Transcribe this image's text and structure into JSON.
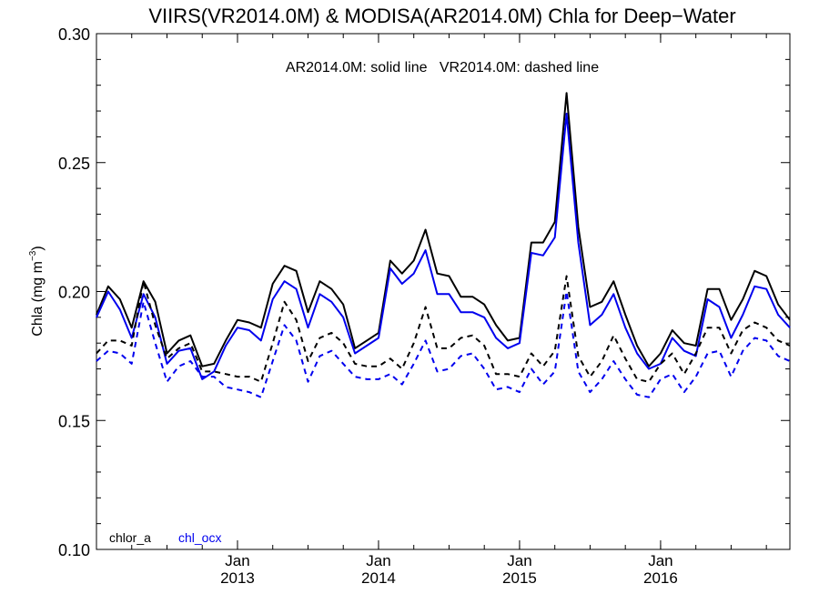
{
  "chart_data": {
    "type": "line",
    "title": "VIIRS(VR2014.0M) & MODISA(AR2014.0M)  Chla for Deep−Water",
    "subtitle": "AR2014.0M: solid line   VR2014.0M: dashed line",
    "xlabel": "",
    "ylabel": "Chla (mg m",
    "ylabel_sup": "−3",
    "ylabel_close": ")",
    "ylim": [
      0.1,
      0.3
    ],
    "yticks": [
      "0.10",
      "0.15",
      "0.20",
      "0.25",
      "0.30"
    ],
    "yticks_values": [
      0.1,
      0.15,
      0.2,
      0.25,
      0.3
    ],
    "xlim": [
      "2012-01",
      "2016-12"
    ],
    "xticks": [
      {
        "month": "2013-01",
        "line1": "Jan",
        "line2": "2013"
      },
      {
        "month": "2014-01",
        "line1": "Jan",
        "line2": "2014"
      },
      {
        "month": "2015-01",
        "line1": "Jan",
        "line2": "2015"
      },
      {
        "month": "2016-01",
        "line1": "Jan",
        "line2": "2016"
      }
    ],
    "grid": false,
    "legend_entries": [
      {
        "label": "chlor_a",
        "color": "#000000"
      },
      {
        "label": "chl_ocx",
        "color": "#0000ee"
      }
    ],
    "legend_position": "bottom-left",
    "x": [
      "2012-01",
      "2012-02",
      "2012-03",
      "2012-04",
      "2012-05",
      "2012-06",
      "2012-07",
      "2012-08",
      "2012-09",
      "2012-10",
      "2012-11",
      "2012-12",
      "2013-01",
      "2013-02",
      "2013-03",
      "2013-04",
      "2013-05",
      "2013-06",
      "2013-07",
      "2013-08",
      "2013-09",
      "2013-10",
      "2013-11",
      "2013-12",
      "2014-01",
      "2014-02",
      "2014-03",
      "2014-04",
      "2014-05",
      "2014-06",
      "2014-07",
      "2014-08",
      "2014-09",
      "2014-10",
      "2014-11",
      "2014-12",
      "2015-01",
      "2015-02",
      "2015-03",
      "2015-04",
      "2015-05",
      "2015-06",
      "2015-07",
      "2015-08",
      "2015-09",
      "2015-10",
      "2015-11",
      "2015-12",
      "2016-01",
      "2016-02",
      "2016-03",
      "2016-04",
      "2016-05",
      "2016-06",
      "2016-07",
      "2016-08",
      "2016-09",
      "2016-10",
      "2016-11",
      "2016-12"
    ],
    "series": [
      {
        "name": "chlor_a",
        "product": "AR2014.0M",
        "color": "#000000",
        "dash": false,
        "values": [
          0.191,
          0.202,
          0.197,
          0.186,
          0.204,
          0.196,
          0.176,
          0.181,
          0.183,
          0.171,
          0.172,
          0.181,
          0.189,
          0.188,
          0.186,
          0.203,
          0.21,
          0.208,
          0.192,
          0.204,
          0.201,
          0.195,
          0.178,
          0.181,
          0.184,
          0.212,
          0.207,
          0.212,
          0.224,
          0.207,
          0.206,
          0.198,
          0.198,
          0.195,
          0.187,
          0.181,
          0.182,
          0.219,
          0.219,
          0.227,
          0.277,
          0.225,
          0.194,
          0.196,
          0.204,
          0.191,
          0.179,
          0.171,
          0.176,
          0.185,
          0.18,
          0.179,
          0.201,
          0.201,
          0.189,
          0.197,
          0.208,
          0.206,
          0.195,
          0.189
        ]
      },
      {
        "name": "chl_ocx",
        "product": "AR2014.0M",
        "color": "#0000ee",
        "dash": false,
        "values": [
          0.19,
          0.2,
          0.193,
          0.182,
          0.199,
          0.19,
          0.172,
          0.177,
          0.178,
          0.166,
          0.169,
          0.179,
          0.186,
          0.185,
          0.181,
          0.197,
          0.204,
          0.201,
          0.186,
          0.199,
          0.196,
          0.19,
          0.176,
          0.179,
          0.182,
          0.209,
          0.203,
          0.207,
          0.216,
          0.199,
          0.199,
          0.192,
          0.192,
          0.19,
          0.182,
          0.178,
          0.18,
          0.215,
          0.214,
          0.221,
          0.269,
          0.219,
          0.187,
          0.191,
          0.199,
          0.186,
          0.176,
          0.17,
          0.172,
          0.182,
          0.177,
          0.175,
          0.197,
          0.194,
          0.182,
          0.191,
          0.202,
          0.201,
          0.191,
          0.186
        ]
      },
      {
        "name": "chlor_a",
        "product": "VR2014.0M",
        "color": "#000000",
        "dash": true,
        "values": [
          0.176,
          0.181,
          0.181,
          0.179,
          0.204,
          0.187,
          0.174,
          0.178,
          0.18,
          0.169,
          0.169,
          0.168,
          0.167,
          0.167,
          0.165,
          0.18,
          0.196,
          0.189,
          0.173,
          0.182,
          0.184,
          0.18,
          0.172,
          0.171,
          0.171,
          0.174,
          0.17,
          0.18,
          0.194,
          0.178,
          0.178,
          0.182,
          0.183,
          0.179,
          0.168,
          0.168,
          0.167,
          0.176,
          0.171,
          0.177,
          0.206,
          0.175,
          0.167,
          0.173,
          0.183,
          0.174,
          0.166,
          0.165,
          0.172,
          0.176,
          0.168,
          0.176,
          0.186,
          0.186,
          0.176,
          0.185,
          0.188,
          0.186,
          0.181,
          0.179
        ]
      },
      {
        "name": "chl_ocx",
        "product": "VR2014.0M",
        "color": "#0000ee",
        "dash": true,
        "values": [
          0.173,
          0.177,
          0.176,
          0.172,
          0.196,
          0.18,
          0.165,
          0.171,
          0.173,
          0.167,
          0.167,
          0.163,
          0.162,
          0.161,
          0.159,
          0.173,
          0.187,
          0.181,
          0.165,
          0.175,
          0.177,
          0.172,
          0.167,
          0.166,
          0.166,
          0.168,
          0.164,
          0.172,
          0.181,
          0.169,
          0.17,
          0.175,
          0.176,
          0.17,
          0.162,
          0.163,
          0.161,
          0.17,
          0.164,
          0.169,
          0.2,
          0.169,
          0.161,
          0.166,
          0.173,
          0.166,
          0.16,
          0.159,
          0.166,
          0.168,
          0.161,
          0.167,
          0.176,
          0.177,
          0.167,
          0.177,
          0.182,
          0.181,
          0.175,
          0.173
        ]
      }
    ]
  }
}
